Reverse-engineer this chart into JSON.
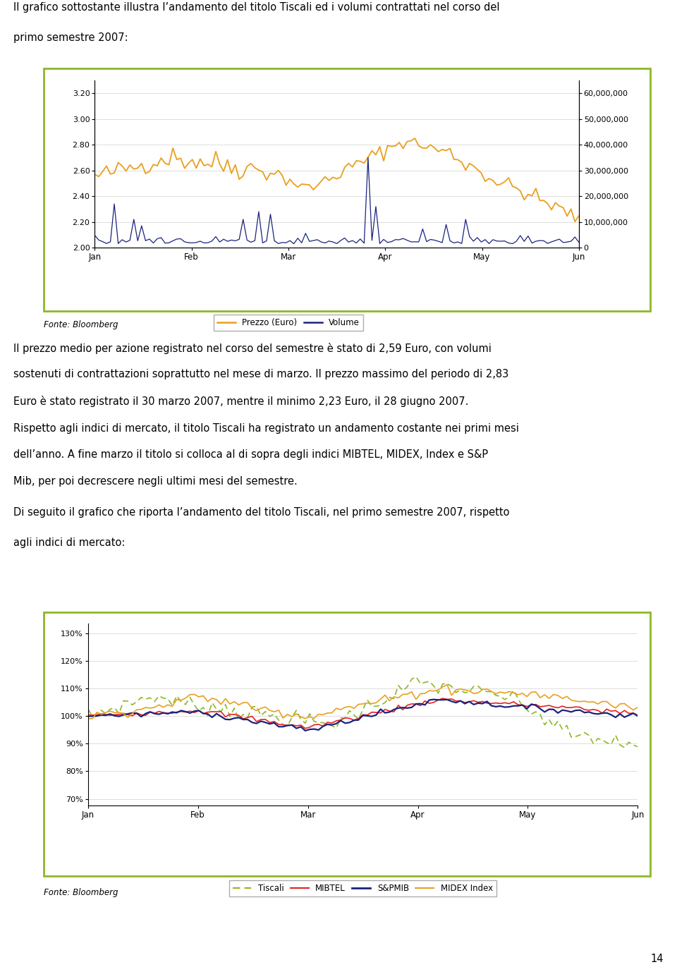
{
  "page_width": 9.6,
  "page_height": 13.88,
  "background_color": "#ffffff",
  "text_intro1": "Il grafico sottostante illustra l’andamento del titolo Tiscali ed i volumi contrattati nel corso del",
  "text_intro2": "primo semestre 2007:",
  "chart1": {
    "border_color": "#8db827",
    "border_linewidth": 2.0,
    "left_ylim": [
      2.0,
      3.3
    ],
    "left_yticks": [
      2.0,
      2.2,
      2.4,
      2.6,
      2.8,
      3.0,
      3.2
    ],
    "right_ylim": [
      0,
      65000000
    ],
    "right_yticks": [
      0,
      10000000,
      20000000,
      30000000,
      40000000,
      50000000,
      60000000
    ],
    "right_yticklabels": [
      "0",
      "10,000,000",
      "20,000,000",
      "30,000,000",
      "40,000,000",
      "50,000,000",
      "60,000,000"
    ],
    "xticklabels": [
      "Jan",
      "Feb",
      "Mar",
      "Apr",
      "May",
      "Jun"
    ],
    "prezzo_color": "#e8a020",
    "volume_color": "#1a237e",
    "legend_label1": "Prezzo (Euro)",
    "legend_label2": "Volume",
    "fonte": "Fonte: Bloomberg"
  },
  "text_para1_l1": "Il prezzo medio per azione registrato nel corso del semestre è stato di 2,59 Euro, con volumi",
  "text_para1_l2": "sostenuti di contrattazioni soprattutto nel mese di marzo. Il prezzo massimo del periodo di 2,83",
  "text_para1_l3": "Euro è stato registrato il 30 marzo 2007, mentre il minimo 2,23 Euro, il 28 giugno 2007.",
  "text_para2_l1": "Rispetto agli indici di mercato, il titolo Tiscali ha registrato un andamento costante nei primi mesi",
  "text_para2_l2": "dell’anno. A fine marzo il titolo si colloca al di sopra degli indici MIBTEL, MIDEX, Index e S&P",
  "text_para2_l3": "Mib, per poi decrescere negli ultimi mesi del semestre.",
  "text_para3_l1": "Di seguito il grafico che riporta l’andamento del titolo Tiscali, nel primo semestre 2007, rispetto",
  "text_para3_l2": "agli indici di mercato:",
  "chart2": {
    "border_color": "#8db827",
    "border_linewidth": 2.0,
    "ylim": [
      0.675,
      1.335
    ],
    "yticks": [
      0.7,
      0.8,
      0.9,
      1.0,
      1.1,
      1.2,
      1.3
    ],
    "yticklabels": [
      "70%",
      "80%",
      "90%",
      "100%",
      "110%",
      "120%",
      "130%"
    ],
    "xticklabels": [
      "Jan",
      "Feb",
      "Mar",
      "Apr",
      "May",
      "Jun"
    ],
    "tiscali_color": "#8db827",
    "mibtel_color": "#e82020",
    "spmib_color": "#1a237e",
    "midex_color": "#e8a020",
    "legend_labels": [
      "Tiscali",
      "MIBTEL",
      "S&PMIB",
      "MIDEX Index"
    ],
    "fonte": "Fonte: Bloomberg"
  },
  "page_number": "14",
  "font_size_body": 10.5,
  "font_size_tick": 8.0,
  "font_size_legend": 8.5,
  "font_size_fonte": 8.5,
  "font_size_page": 10.5
}
